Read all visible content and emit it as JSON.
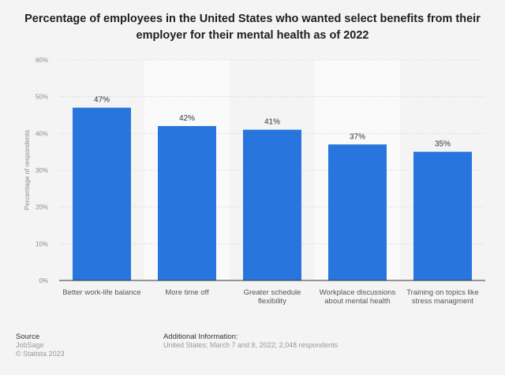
{
  "chart_data": {
    "type": "bar",
    "title": "Percentage of employees in the United States who wanted select benefits from their employer for their mental health as of 2022",
    "categories": [
      "Better work-life balance",
      "More time off",
      "Greater schedule flexibility",
      "Workplace discussions about mental health",
      "Training on topics like stress managment"
    ],
    "category_lines": [
      [
        "Better work-life balance"
      ],
      [
        "More time off"
      ],
      [
        "Greater schedule",
        "flexibility"
      ],
      [
        "Workplace discussions",
        "about mental health"
      ],
      [
        "Training on topics like",
        "stress managment"
      ]
    ],
    "values": [
      47,
      42,
      41,
      37,
      35
    ],
    "data_labels": [
      "47%",
      "42%",
      "41%",
      "37%",
      "35%"
    ],
    "xlabel": "",
    "ylabel": "Percentage of respondents",
    "ylim": [
      0,
      60
    ],
    "yticks": [
      0,
      10,
      20,
      30,
      40,
      50,
      60
    ],
    "ytick_labels": [
      "0%",
      "10%",
      "20%",
      "30%",
      "40%",
      "50%",
      "60%"
    ],
    "grid": true,
    "bar_color": "#2876dd"
  },
  "footer": {
    "source_label": "Source",
    "source_value": "JobSage",
    "copyright": "© Statista 2023",
    "info_label": "Additional Information:",
    "info_value": "United States; March 7 and 8, 2022; 2,048 respondents"
  }
}
